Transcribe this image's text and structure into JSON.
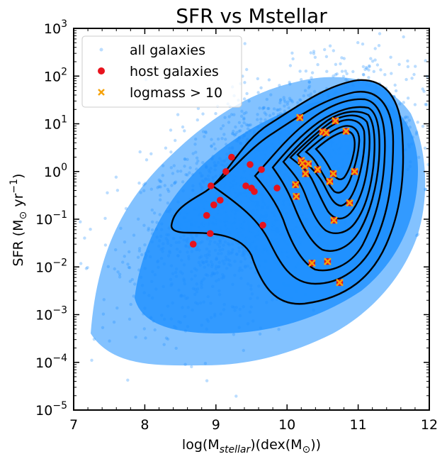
{
  "chart_data": {
    "type": "scatter",
    "title": "SFR vs Mstellar",
    "xlabel": "log(M_stellar)(dex(M_⊙))",
    "ylabel": "SFR (M_⊙ yr^−1)",
    "xlim": [
      7,
      12
    ],
    "ylim": [
      1e-05,
      1000
    ],
    "yscale": "log",
    "x_ticks": [
      "7",
      "8",
      "9",
      "10",
      "11",
      "12"
    ],
    "y_ticks": [
      "10^-5",
      "10^-4",
      "10^-3",
      "10^-2",
      "10^-1",
      "10^0",
      "10^1",
      "10^2",
      "10^3"
    ],
    "legend_position": "top-left",
    "colors": {
      "all_galaxies": "#1e90ff",
      "host_galaxies": "#e8131d",
      "logmass": "#f5a20a",
      "contour": "#000000"
    },
    "series": [
      {
        "name": "all galaxies",
        "marker": "circle",
        "density_note": "dense cloud",
        "points": [
          [
            8.0,
            0.001
          ],
          [
            9.0,
            0.01
          ],
          [
            10.0,
            1.0
          ],
          [
            11.0,
            10.0
          ],
          [
            7.5,
            0.0003
          ]
        ]
      },
      {
        "name": "host galaxies",
        "marker": "circle",
        "points": [
          [
            8.68,
            0.03
          ],
          [
            8.87,
            0.12
          ],
          [
            8.92,
            0.05
          ],
          [
            8.93,
            0.5
          ],
          [
            8.97,
            0.2
          ],
          [
            9.06,
            0.25
          ],
          [
            9.14,
            1.0
          ],
          [
            9.22,
            2.0
          ],
          [
            9.42,
            0.5
          ],
          [
            9.48,
            1.4
          ],
          [
            9.5,
            0.45
          ],
          [
            9.54,
            0.38
          ],
          [
            9.64,
            1.1
          ],
          [
            9.66,
            0.075
          ],
          [
            9.86,
            0.45
          ]
        ]
      },
      {
        "name": "logmass > 10",
        "marker": "x",
        "points": [
          [
            10.12,
            0.53
          ],
          [
            10.13,
            0.3
          ],
          [
            10.18,
            13.5
          ],
          [
            10.2,
            1.7
          ],
          [
            10.22,
            1.5
          ],
          [
            10.25,
            1.3
          ],
          [
            10.26,
            0.9
          ],
          [
            10.3,
            1.45
          ],
          [
            10.35,
            0.012
          ],
          [
            10.43,
            1.1
          ],
          [
            10.5,
            6.8
          ],
          [
            10.55,
            6.5
          ],
          [
            10.57,
            0.013
          ],
          [
            10.6,
            0.62
          ],
          [
            10.65,
            0.9
          ],
          [
            10.66,
            0.095
          ],
          [
            10.68,
            11.5
          ],
          [
            10.74,
            0.0047
          ],
          [
            10.83,
            7.0
          ],
          [
            10.88,
            0.22
          ],
          [
            10.95,
            1.0
          ]
        ]
      }
    ]
  }
}
